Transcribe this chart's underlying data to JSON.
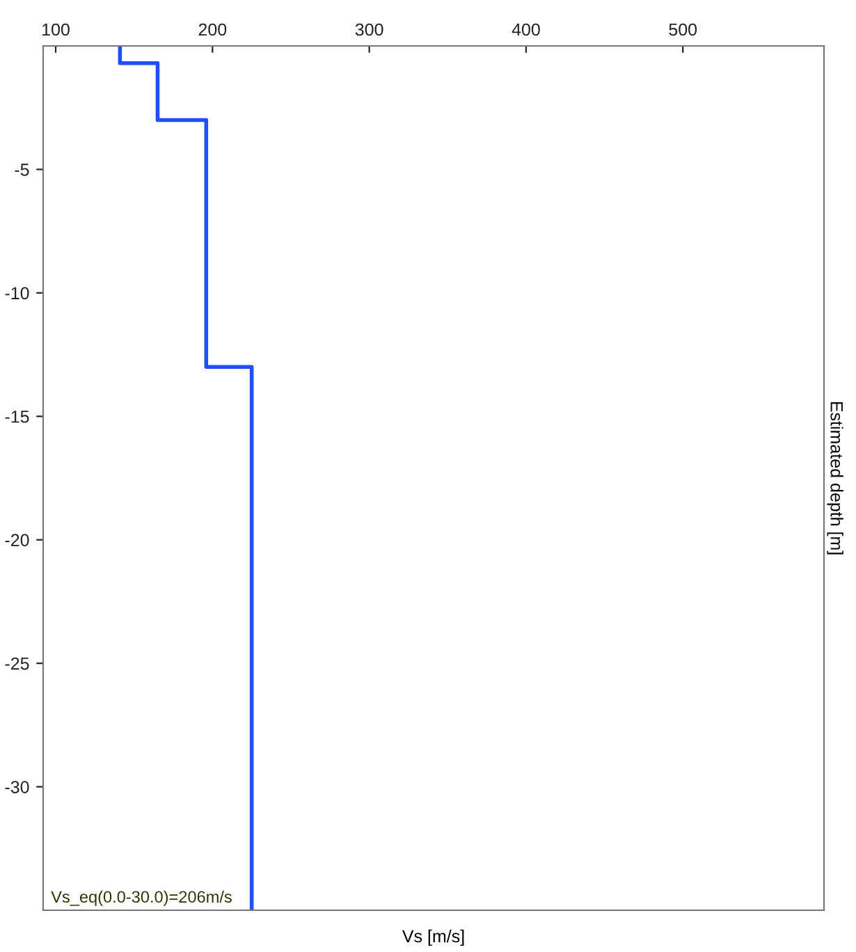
{
  "chart_data": {
    "type": "line",
    "xlabel": "Vs [m/s]",
    "ylabel": "Estimated depth [m]",
    "annotations": [
      "Vs_eq(0.0-30.0)=206m/s"
    ],
    "xlim": [
      92,
      590
    ],
    "xticks": [
      100,
      200,
      300,
      400,
      500
    ],
    "ylim": [
      -35,
      0
    ],
    "yticks": [
      -5,
      -10,
      -15,
      -20,
      -25,
      -30
    ],
    "grid": false,
    "legend": false,
    "series": [
      {
        "color": "#1f4fff",
        "x": [
          141,
          141,
          165,
          165,
          196,
          196,
          225,
          225
        ],
        "values": [
          0,
          -0.7,
          -0.7,
          -3,
          -3,
          -13,
          -13,
          -35
        ]
      }
    ]
  }
}
